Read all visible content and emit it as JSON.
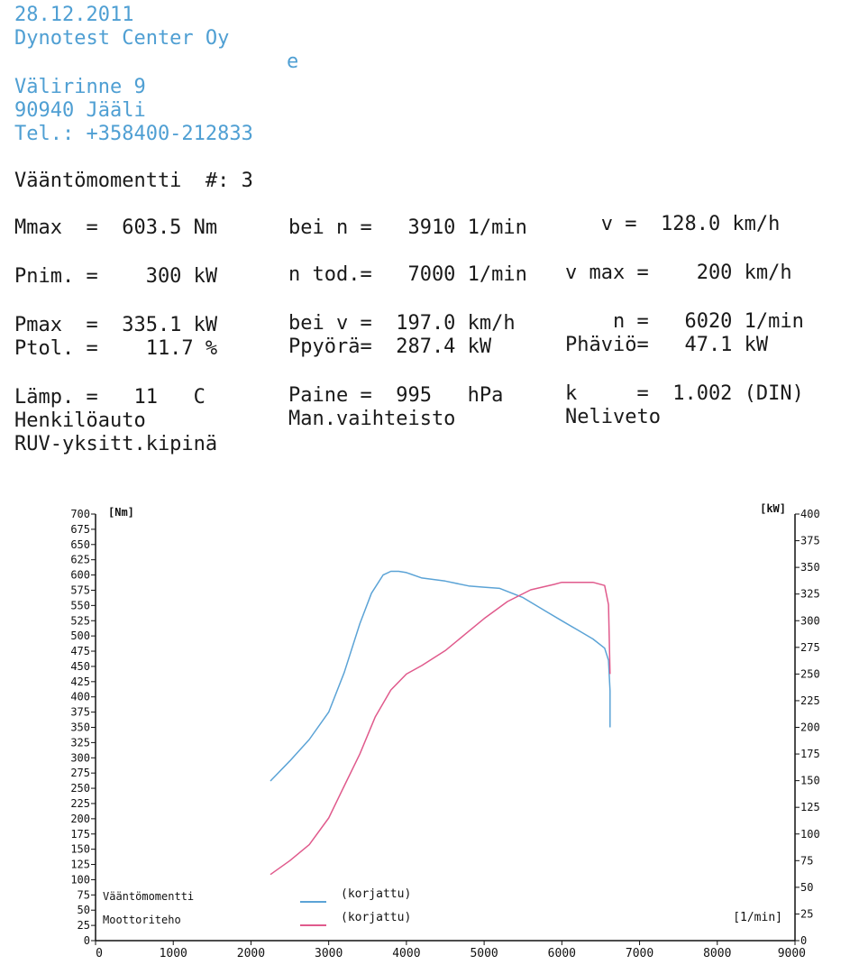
{
  "header": {
    "date": "28.12.2011",
    "company": "Dynotest Center Oy",
    "stray_mark": "e",
    "street": "Välirinne 9",
    "city": "90940 Jääli",
    "phone": "Tel.: +358400-212833"
  },
  "title": "Vääntömomentti  #: 3",
  "results": {
    "row1": {
      "a": "Mmax  =  603.5 Nm",
      "b": "bei n =   3910 1/min",
      "c": "   v =  128.0 km/h"
    },
    "row2": {
      "a": "Pnim. =    300 kW",
      "b": "n tod.=   7000 1/min",
      "c": "v max =    200 km/h"
    },
    "row3": {
      "a": "Pmax  =  335.1 kW",
      "b": "bei v =  197.0 km/h",
      "c": "    n =   6020 1/min"
    },
    "row4": {
      "a": "Ptol. =    11.7 %",
      "b": "Ppyörä=  287.4 kW",
      "c": "Phäviö=   47.1 kW"
    },
    "row5": {
      "a": "Lämp. =   11   C",
      "b": "Paine =  995   hPa",
      "c": "k     =  1.002 (DIN)"
    },
    "row6": {
      "a": "Henkilöauto",
      "b": "Man.vaihteisto",
      "c": "Neliveto"
    },
    "row7": {
      "a": "RUV-yksitt.kipinä"
    }
  },
  "chart_data": {
    "type": "line",
    "xlabel": "[1/min]",
    "ylabel_left": "[Nm]",
    "ylabel_right": "[kW]",
    "xlim": [
      0,
      9000
    ],
    "ylim_left": [
      0,
      700
    ],
    "ylim_right": [
      0,
      400
    ],
    "x_ticks": [
      "0",
      "1000",
      "2000",
      "3000",
      "4000",
      "5000",
      "6000",
      "7000",
      "8000",
      "9000"
    ],
    "y_left_ticks": [
      "0",
      "25",
      "50",
      "75",
      "100",
      "125",
      "150",
      "175",
      "200",
      "225",
      "250",
      "275",
      "300",
      "325",
      "350",
      "375",
      "400",
      "425",
      "450",
      "475",
      "500",
      "525",
      "550",
      "575",
      "600",
      "625",
      "650",
      "675",
      "700"
    ],
    "y_right_ticks": [
      "0",
      "25",
      "50",
      "75",
      "100",
      "125",
      "150",
      "175",
      "200",
      "225",
      "250",
      "275",
      "300",
      "325",
      "350",
      "375",
      "400"
    ],
    "grid": false,
    "series": [
      {
        "name": "Vääntömomentti",
        "tag": "(korjattu)",
        "axis": "left",
        "color": "#5ba3d6",
        "x": [
          2250,
          2500,
          2750,
          3000,
          3200,
          3400,
          3550,
          3700,
          3800,
          3900,
          4000,
          4200,
          4500,
          4800,
          5000,
          5200,
          5500,
          5800,
          6000,
          6200,
          6400,
          6550,
          6600,
          6620,
          6620
        ],
        "y": [
          262,
          295,
          330,
          375,
          440,
          520,
          570,
          600,
          606,
          606,
          604,
          595,
          590,
          582,
          580,
          578,
          563,
          540,
          525,
          510,
          495,
          480,
          460,
          410,
          350
        ]
      },
      {
        "name": "Moottoriteho",
        "tag": "(korjattu)",
        "axis": "right",
        "color": "#e05a8c",
        "x": [
          2250,
          2500,
          2750,
          3000,
          3200,
          3400,
          3600,
          3800,
          4000,
          4200,
          4500,
          4800,
          5000,
          5300,
          5600,
          5900,
          6000,
          6200,
          6400,
          6550,
          6600,
          6620
        ],
        "y": [
          62,
          75,
          90,
          115,
          145,
          175,
          210,
          235,
          250,
          258,
          272,
          290,
          302,
          318,
          329,
          334,
          336,
          336,
          336,
          333,
          315,
          250
        ]
      }
    ]
  }
}
